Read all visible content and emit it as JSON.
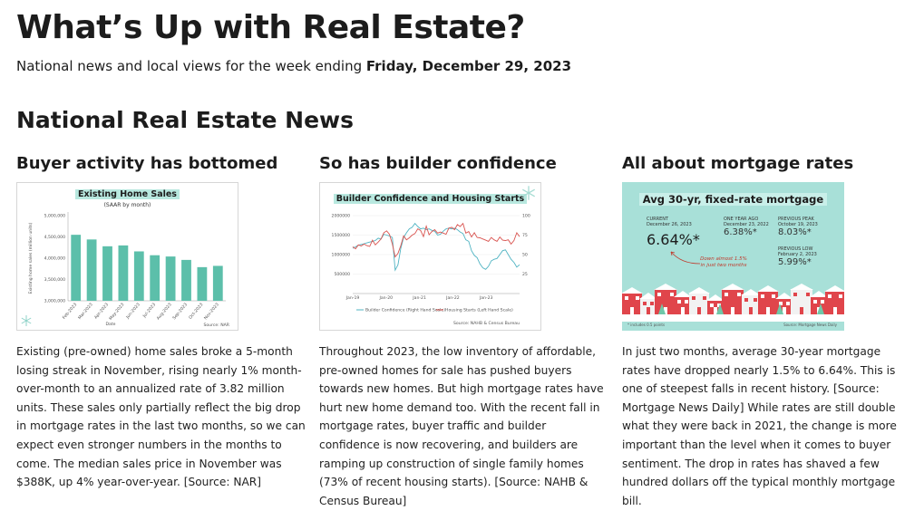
{
  "header": {
    "title": "What’s Up with Real Estate?",
    "subtitle_prefix": "National news and local views for the week ending ",
    "subtitle_date": "Friday, December 29, 2023"
  },
  "section": {
    "title": "National Real Estate News"
  },
  "columns": [
    {
      "title": "Buyer activity has bottomed",
      "body": "Existing (pre-owned) home sales broke a 5-month losing streak in November, rising nearly 1% month-over-month to an annualized rate of 3.82 million units. These sales only partially reflect the big drop in mortgage rates in the last two months, so we can expect even stronger numbers in the months to come. The median sales price in November was $388K, up 4% year-over-year. [Source: NAR]"
    },
    {
      "title": "So has builder confidence",
      "body": "Throughout 2023, the low inventory of affordable, pre-owned homes for sale has pushed buyers towards new homes. But high mortgage rates have hurt new home demand too. With the recent fall in mortgage rates, buyer traffic and builder confidence is now recovering, and builders are ramping up construction of single family homes (73% of recent housing starts). [Source: NAHB & Census Bureau]"
    },
    {
      "title": "All about mortgage rates",
      "body": "In just two months, average 30-year mortgage rates have dropped nearly 1.5% to 6.64%. This is one of steepest falls in recent history. [Source: Mortgage News Daily] While rates are still double what they were back in 2021, the change is more important than the level when it comes to buyer sentiment. The drop in rates has shaved a few hundred dollars off the typical monthly mortgage bill."
    }
  ],
  "chart_data": [
    {
      "type": "bar",
      "title": "Existing Home Sales",
      "subtitle": "(SAAR by month)",
      "ylabel": "Existing home sales (million units)",
      "xlabel": "Date",
      "source": "Source: NAR",
      "categories": [
        "Feb-2023",
        "Mar-2023",
        "Apr-2023",
        "May-2023",
        "Jun-2023",
        "Jul-2023",
        "Aug-2023",
        "Sep-2023",
        "Oct-2023",
        "Nov-2023"
      ],
      "values": [
        4550000,
        4440000,
        4280000,
        4300000,
        4160000,
        4070000,
        4040000,
        3960000,
        3790000,
        3820000
      ],
      "y_ticks": [
        "3,000,000",
        "3,500,000",
        "4,000,000",
        "4,500,000",
        "5,000,000"
      ],
      "ylim": [
        3000000,
        5000000
      ],
      "color": "#5cbfaa"
    },
    {
      "type": "line",
      "title": "Builder Confidence and Housing Starts",
      "x_ticks": [
        "Jan-19",
        "Jan-20",
        "Jan-21",
        "Jan-22",
        "Jan-23"
      ],
      "y_left_ticks": [
        "500000",
        "1000000",
        "1500000",
        "2000000"
      ],
      "y_right_ticks": [
        "25",
        "50",
        "75",
        "100"
      ],
      "ylim_left": [
        0,
        2000000
      ],
      "ylim_right": [
        0,
        100
      ],
      "legend": [
        "Builder Confidence (Right Hand Scale)",
        "Housing Starts (Left Hand Scale)"
      ],
      "source": "Source: NAHB & Census Bureau",
      "series": [
        {
          "name": "Builder Confidence (Right Hand Scale)",
          "axis": "right",
          "color": "#4fb3c2",
          "values": [
            58,
            60,
            62,
            63,
            64,
            65,
            66,
            67,
            68,
            71,
            70,
            76,
            75,
            74,
            72,
            30,
            37,
            58,
            72,
            78,
            83,
            85,
            90,
            86,
            83,
            84,
            82,
            83,
            81,
            80,
            75,
            76,
            80,
            83,
            84,
            83,
            84,
            82,
            79,
            77,
            69,
            67,
            55,
            49,
            46,
            38,
            33,
            31,
            35,
            42,
            44,
            45,
            50,
            55,
            56,
            50,
            44,
            40,
            34,
            37
          ]
        },
        {
          "name": "Housing Starts (Left Hand Scale)",
          "axis": "left",
          "color": "#d9534f",
          "values": [
            1200000,
            1150000,
            1250000,
            1220000,
            1270000,
            1230000,
            1210000,
            1370000,
            1250000,
            1320000,
            1400000,
            1560000,
            1610000,
            1520000,
            1270000,
            940000,
            1030000,
            1230000,
            1480000,
            1380000,
            1430000,
            1500000,
            1540000,
            1660000,
            1620000,
            1460000,
            1730000,
            1510000,
            1590000,
            1640000,
            1550000,
            1580000,
            1550000,
            1520000,
            1680000,
            1700000,
            1640000,
            1770000,
            1720000,
            1800000,
            1550000,
            1590000,
            1450000,
            1560000,
            1440000,
            1430000,
            1400000,
            1370000,
            1340000,
            1440000,
            1380000,
            1340000,
            1450000,
            1370000,
            1360000,
            1380000,
            1270000,
            1360000,
            1560000,
            1460000
          ]
        }
      ]
    }
  ],
  "mortgage_card": {
    "title": "Avg 30-yr, fixed-rate mortgage",
    "current_label": "CURRENT",
    "current_date": "December 26, 2023",
    "current_value": "6.64%*",
    "year_ago_label": "ONE YEAR AGO",
    "year_ago_date": "December 23, 2022",
    "year_ago_value": "6.38%*",
    "peak_label": "PREVIOUS PEAK",
    "peak_date": "October 19, 2023",
    "peak_value": "8.03%*",
    "low_label": "PREVIOUS LOW",
    "low_date": "February 2, 2023",
    "low_value": "5.99%*",
    "note": "Down almost 1.5% in just two months",
    "foot_left": "* includes 0.5 points",
    "foot_right": "Source: Mortgage News Daily"
  },
  "colors": {
    "bar": "#5cbfaa",
    "confidence_line": "#4fb3c2",
    "starts_line": "#d9534f",
    "mortgage_bg": "#a8e0d8",
    "houses_red": "#e0454b"
  }
}
